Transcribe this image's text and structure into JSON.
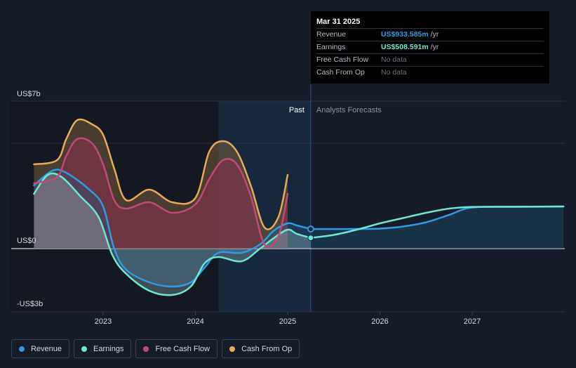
{
  "tooltip": {
    "date": "Mar 31 2025",
    "rows": [
      {
        "label": "Revenue",
        "value": "US$933.585m",
        "unit": "/yr",
        "color": "#2e9be6"
      },
      {
        "label": "Earnings",
        "value": "US$508.591m",
        "unit": "/yr",
        "color": "#6ee7cf"
      },
      {
        "label": "Free Cash Flow",
        "value": "No data",
        "unit": "",
        "color": ""
      },
      {
        "label": "Cash From Op",
        "value": "No data",
        "unit": "",
        "color": ""
      }
    ]
  },
  "past_label": "Past",
  "forecast_label": "Analysts Forecasts",
  "legend": [
    {
      "label": "Revenue",
      "color": "#2e9be6"
    },
    {
      "label": "Earnings",
      "color": "#6ee7cf"
    },
    {
      "label": "Free Cash Flow",
      "color": "#c2497a"
    },
    {
      "label": "Cash From Op",
      "color": "#e8a95b"
    }
  ],
  "chart_data": {
    "type": "line",
    "y_tick_labels": [
      "US$7b",
      "US$0",
      "-US$3b"
    ],
    "x_tick_labels": [
      "2023",
      "2024",
      "2025",
      "2026",
      "2027"
    ],
    "ylim": [
      -3.0,
      7.0
    ],
    "xlim": [
      2022.0,
      2028.0
    ],
    "divider_x": 2025.25,
    "legend_position": "bottom",
    "series": [
      {
        "name": "Revenue",
        "color": "#2e9be6",
        "x": [
          2022.25,
          2022.45,
          2022.6,
          2022.85,
          2023.0,
          2023.12,
          2023.25,
          2023.5,
          2023.75,
          2023.95,
          2024.1,
          2024.25,
          2024.5,
          2024.7,
          2024.85,
          2025.0,
          2025.1,
          2025.25
        ],
        "y": [
          3.0,
          3.7,
          3.6,
          2.8,
          2.0,
          0.0,
          -1.0,
          -1.6,
          -1.8,
          -1.6,
          -0.9,
          -0.2,
          -0.2,
          0.2,
          0.85,
          1.2,
          1.1,
          0.93
        ]
      },
      {
        "name": "Revenue forecast",
        "color": "#2e9be6",
        "x": [
          2025.25,
          2025.5,
          2025.75,
          2026.0,
          2026.25,
          2026.5,
          2026.75,
          2027.0,
          2027.5,
          2027.99
        ],
        "y": [
          0.93,
          0.93,
          0.93,
          0.95,
          1.05,
          1.25,
          1.6,
          1.95,
          1.98,
          2.0
        ]
      },
      {
        "name": "Earnings",
        "color": "#6ee7cf",
        "x": [
          2022.25,
          2022.4,
          2022.55,
          2022.75,
          2022.95,
          2023.1,
          2023.25,
          2023.5,
          2023.75,
          2023.95,
          2024.1,
          2024.25,
          2024.5,
          2024.7,
          2024.85,
          2025.0,
          2025.1,
          2025.25
        ],
        "y": [
          2.6,
          3.5,
          3.4,
          2.5,
          1.5,
          -0.3,
          -1.2,
          -2.0,
          -2.2,
          -1.8,
          -0.7,
          -0.4,
          -0.6,
          0.0,
          0.5,
          0.9,
          0.7,
          0.51
        ]
      },
      {
        "name": "Earnings forecast",
        "color": "#6ee7cf",
        "x": [
          2025.25,
          2025.5,
          2025.75,
          2026.0,
          2026.25,
          2026.5,
          2026.75,
          2027.0,
          2027.5,
          2027.99
        ],
        "y": [
          0.51,
          0.65,
          0.9,
          1.2,
          1.45,
          1.7,
          1.9,
          1.98,
          1.99,
          2.0
        ]
      },
      {
        "name": "Free Cash Flow",
        "color": "#c2497a",
        "x": [
          2022.25,
          2022.5,
          2022.6,
          2022.72,
          2022.88,
          2023.0,
          2023.12,
          2023.25,
          2023.5,
          2023.75,
          2024.0,
          2024.15,
          2024.3,
          2024.45,
          2024.6,
          2024.75,
          2024.9,
          2025.0
        ],
        "y": [
          3.1,
          3.4,
          4.4,
          5.2,
          5.0,
          4.0,
          2.3,
          1.9,
          2.2,
          1.7,
          2.1,
          3.3,
          4.2,
          4.0,
          2.5,
          0.2,
          0.6,
          2.6
        ]
      },
      {
        "name": "Cash From Op",
        "color": "#e8a95b",
        "x": [
          2022.25,
          2022.5,
          2022.6,
          2022.72,
          2022.88,
          2023.0,
          2023.12,
          2023.25,
          2023.5,
          2023.75,
          2024.0,
          2024.15,
          2024.3,
          2024.45,
          2024.6,
          2024.75,
          2024.9,
          2025.0
        ],
        "y": [
          4.0,
          4.2,
          5.2,
          6.1,
          5.9,
          5.4,
          3.8,
          2.3,
          2.8,
          2.2,
          2.4,
          4.6,
          5.1,
          4.6,
          3.0,
          1.0,
          1.5,
          3.5
        ]
      }
    ]
  }
}
